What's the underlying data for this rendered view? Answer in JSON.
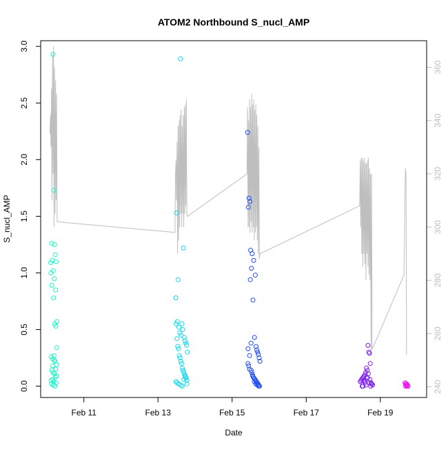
{
  "chart_data": {
    "type": "scatter",
    "title": "ATOM2 Northbound S_nucl_AMP",
    "xlabel": "Date",
    "ylabel": "S_nucl_AMP",
    "xlim": [
      "2024-02-09T20:00",
      "2024-02-20T06:00"
    ],
    "ylim": [
      -0.1,
      3.05
    ],
    "y2lim": [
      236,
      370
    ],
    "grid": false,
    "legend": "none",
    "x_ticks": [
      {
        "date": "2024-02-11T00:00",
        "label": "Feb 11"
      },
      {
        "date": "2024-02-13T00:00",
        "label": "Feb 13"
      },
      {
        "date": "2024-02-15T00:00",
        "label": "Feb 15"
      },
      {
        "date": "2024-02-17T00:00",
        "label": "Feb 17"
      },
      {
        "date": "2024-02-19T00:00",
        "label": "Feb 19"
      }
    ],
    "y_ticks": [
      {
        "value": 0.0,
        "label": "0.0"
      },
      {
        "value": 0.5,
        "label": "0.5"
      },
      {
        "value": 1.0,
        "label": "1.0"
      },
      {
        "value": 1.5,
        "label": "1.5"
      },
      {
        "value": 2.0,
        "label": "2.0"
      },
      {
        "value": 2.5,
        "label": "2.5"
      },
      {
        "value": 3.0,
        "label": "3.0"
      }
    ],
    "y2_ticks": [
      {
        "value": 240,
        "label": "240"
      },
      {
        "value": 260,
        "label": "260"
      },
      {
        "value": 280,
        "label": "280"
      },
      {
        "value": 300,
        "label": "300"
      },
      {
        "value": 320,
        "label": "320"
      },
      {
        "value": 340,
        "label": "340"
      },
      {
        "value": 360,
        "label": "360"
      }
    ],
    "colors": {
      "axis": "#000000",
      "right_axis": "#bebebe",
      "line": "#bebebe",
      "point_palette": [
        "#00ffc0",
        "#00d8f0",
        "#0046ff",
        "#7a00ff",
        "#ff00f0"
      ]
    },
    "series": [
      {
        "type": "scatter",
        "color": "#19f5c8",
        "x": [
          "2024-02-10T04:00",
          "2024-02-10T04:30",
          "2024-02-10T05:00",
          "2024-02-10T05:30",
          "2024-02-10T06:00",
          "2024-02-10T06:30",
          "2024-02-10T03:00",
          "2024-02-10T03:30",
          "2024-02-10T02:30",
          "2024-02-10T04:10",
          "2024-02-10T04:50",
          "2024-02-10T05:40",
          "2024-02-10T02:40",
          "2024-02-10T03:10",
          "2024-02-10T04:20",
          "2024-02-10T05:10",
          "2024-02-10T05:50",
          "2024-02-10T06:20",
          "2024-02-10T02:50",
          "2024-02-10T03:40",
          "2024-02-10T04:40",
          "2024-02-10T05:20",
          "2024-02-10T06:10",
          "2024-02-10T03:20",
          "2024-02-10T04:00",
          "2024-02-10T05:00",
          "2024-02-10T05:30",
          "2024-02-10T03:50",
          "2024-02-10T04:30",
          "2024-02-10T06:00",
          "2024-02-10T03:00",
          "2024-02-10T04:10",
          "2024-02-10T05:10",
          "2024-02-10T02:45",
          "2024-02-10T03:45",
          "2024-02-10T04:45",
          "2024-02-10T05:45",
          "2024-02-10T06:15"
        ],
        "y": [
          2.93,
          1.73,
          1.25,
          1.16,
          1.1,
          0.57,
          1.26,
          1.11,
          1.09,
          1.02,
          0.95,
          0.85,
          1.0,
          0.89,
          0.78,
          0.55,
          0.53,
          0.34,
          0.26,
          0.24,
          0.27,
          0.22,
          0.19,
          0.14,
          0.12,
          0.11,
          0.08,
          0.06,
          0.04,
          0.03,
          0.02,
          0.01,
          0.0,
          0.05,
          0.18,
          0.23,
          0.15,
          0.09
        ]
      },
      {
        "type": "scatter",
        "color": "#10d8ec",
        "x": [
          "2024-02-13T14:30",
          "2024-02-13T12:00",
          "2024-02-13T16:30",
          "2024-02-13T13:00",
          "2024-02-13T11:30",
          "2024-02-13T12:30",
          "2024-02-13T13:30",
          "2024-02-13T14:00",
          "2024-02-13T15:00",
          "2024-02-13T15:30",
          "2024-02-13T16:00",
          "2024-02-13T17:00",
          "2024-02-13T17:30",
          "2024-02-13T18:00",
          "2024-02-13T18:30",
          "2024-02-13T19:00",
          "2024-02-13T11:45",
          "2024-02-13T12:15",
          "2024-02-13T12:45",
          "2024-02-13T13:15",
          "2024-02-13T13:45",
          "2024-02-13T14:15",
          "2024-02-13T14:45",
          "2024-02-13T15:15",
          "2024-02-13T15:45",
          "2024-02-13T16:15",
          "2024-02-13T16:45",
          "2024-02-13T17:15",
          "2024-02-13T17:45",
          "2024-02-13T18:15",
          "2024-02-13T18:45",
          "2024-02-13T11:40",
          "2024-02-13T12:20",
          "2024-02-13T13:20",
          "2024-02-13T14:40",
          "2024-02-13T15:40",
          "2024-02-13T16:40",
          "2024-02-13T17:40",
          "2024-02-13T18:40"
        ],
        "y": [
          2.89,
          1.53,
          1.22,
          0.94,
          0.78,
          0.57,
          0.52,
          0.47,
          0.45,
          0.55,
          0.5,
          0.43,
          0.4,
          0.38,
          0.36,
          0.3,
          0.55,
          0.42,
          0.35,
          0.33,
          0.27,
          0.25,
          0.22,
          0.2,
          0.16,
          0.14,
          0.12,
          0.1,
          0.08,
          0.07,
          0.05,
          0.04,
          0.03,
          0.02,
          0.01,
          0.0,
          0.06,
          0.09,
          0.02
        ]
      },
      {
        "type": "scatter",
        "color": "#1e4cf4",
        "x": [
          "2024-02-15T10:00",
          "2024-02-15T11:00",
          "2024-02-15T11:30",
          "2024-02-15T10:30",
          "2024-02-15T12:00",
          "2024-02-15T13:00",
          "2024-02-15T14:00",
          "2024-02-15T12:30",
          "2024-02-15T15:00",
          "2024-02-15T11:45",
          "2024-02-15T13:30",
          "2024-02-15T14:30",
          "2024-02-15T12:15",
          "2024-02-15T15:30",
          "2024-02-15T16:00",
          "2024-02-15T16:30",
          "2024-02-15T17:00",
          "2024-02-15T17:30",
          "2024-02-15T18:00",
          "2024-02-15T10:15",
          "2024-02-15T10:45",
          "2024-02-15T11:15",
          "2024-02-15T12:45",
          "2024-02-15T13:15",
          "2024-02-15T13:45",
          "2024-02-15T14:15",
          "2024-02-15T14:45",
          "2024-02-15T15:15",
          "2024-02-15T15:45",
          "2024-02-15T16:15",
          "2024-02-15T16:45",
          "2024-02-15T17:15",
          "2024-02-15T17:45",
          "2024-02-15T10:20",
          "2024-02-15T11:20",
          "2024-02-15T12:20",
          "2024-02-15T13:20",
          "2024-02-15T14:20",
          "2024-02-15T15:20",
          "2024-02-15T16:20",
          "2024-02-15T17:20"
        ],
        "y": [
          2.24,
          1.66,
          1.63,
          1.58,
          1.2,
          1.17,
          1.11,
          1.04,
          0.98,
          0.94,
          0.76,
          0.43,
          0.38,
          0.35,
          0.32,
          0.3,
          0.28,
          0.25,
          0.22,
          0.2,
          0.18,
          0.15,
          0.12,
          0.1,
          0.08,
          0.07,
          0.06,
          0.05,
          0.04,
          0.03,
          0.02,
          0.01,
          0.0,
          0.33,
          0.27,
          0.14,
          0.09,
          0.04,
          0.02,
          0.01,
          0.0
        ]
      },
      {
        "type": "scatter",
        "color": "#7c1cf2",
        "x": [
          "2024-02-18T16:00",
          "2024-02-18T16:30",
          "2024-02-18T17:00",
          "2024-02-18T17:30",
          "2024-02-18T15:00",
          "2024-02-18T15:30",
          "2024-02-18T14:30",
          "2024-02-18T14:00",
          "2024-02-18T13:30",
          "2024-02-18T13:00",
          "2024-02-18T12:30",
          "2024-02-18T12:00",
          "2024-02-18T11:30",
          "2024-02-18T11:00",
          "2024-02-18T18:00",
          "2024-02-18T18:30",
          "2024-02-18T19:00",
          "2024-02-18T12:15",
          "2024-02-18T13:15",
          "2024-02-18T14:15",
          "2024-02-18T15:15",
          "2024-02-18T16:15",
          "2024-02-18T17:15",
          "2024-02-18T18:15",
          "2024-02-18T12:45",
          "2024-02-18T13:45",
          "2024-02-18T14:45",
          "2024-02-18T15:45",
          "2024-02-18T16:45",
          "2024-02-18T17:45"
        ],
        "y": [
          0.36,
          0.3,
          0.29,
          0.2,
          0.16,
          0.14,
          0.12,
          0.1,
          0.09,
          0.08,
          0.07,
          0.06,
          0.05,
          0.04,
          0.03,
          0.02,
          0.01,
          0.0,
          0.05,
          0.03,
          0.08,
          0.11,
          0.06,
          0.02,
          0.0,
          0.04,
          0.01,
          0.07,
          0.03,
          0.0
        ]
      },
      {
        "type": "scatter",
        "color": "#ee10ee",
        "x": [
          "2024-02-19T16:00",
          "2024-02-19T16:30",
          "2024-02-19T17:00",
          "2024-02-19T17:30",
          "2024-02-19T18:00",
          "2024-02-19T16:15",
          "2024-02-19T16:45",
          "2024-02-19T17:15"
        ],
        "y": [
          0.03,
          0.02,
          0.02,
          0.01,
          0.0,
          0.0,
          0.01,
          0.0
        ]
      },
      {
        "type": "line",
        "axis": "right",
        "color": "#bebebe",
        "x": [
          "2024-02-10T02:00",
          "2024-02-10T02:20",
          "2024-02-10T02:40",
          "2024-02-10T03:00",
          "2024-02-10T03:20",
          "2024-02-10T03:40",
          "2024-02-10T04:00",
          "2024-02-10T04:20",
          "2024-02-10T04:40",
          "2024-02-10T05:00",
          "2024-02-10T05:20",
          "2024-02-10T05:40",
          "2024-02-10T06:00",
          "2024-02-10T06:20",
          "2024-02-10T06:40",
          "2024-02-13T11:00",
          "2024-02-13T11:20",
          "2024-02-13T11:40",
          "2024-02-13T12:00",
          "2024-02-13T12:20",
          "2024-02-13T12:40",
          "2024-02-13T13:00",
          "2024-02-13T13:20",
          "2024-02-13T13:40",
          "2024-02-13T14:00",
          "2024-02-13T14:20",
          "2024-02-13T14:40",
          "2024-02-13T15:00",
          "2024-02-13T15:20",
          "2024-02-13T15:40",
          "2024-02-13T16:00",
          "2024-02-13T16:20",
          "2024-02-13T16:40",
          "2024-02-13T17:00",
          "2024-02-13T17:20",
          "2024-02-13T17:40",
          "2024-02-13T18:00",
          "2024-02-13T18:20",
          "2024-02-13T18:40",
          "2024-02-13T19:00",
          "2024-02-15T09:40",
          "2024-02-15T10:00",
          "2024-02-15T10:20",
          "2024-02-15T10:40",
          "2024-02-15T11:00",
          "2024-02-15T11:20",
          "2024-02-15T11:40",
          "2024-02-15T12:00",
          "2024-02-15T12:20",
          "2024-02-15T12:40",
          "2024-02-15T13:00",
          "2024-02-15T13:20",
          "2024-02-15T13:40",
          "2024-02-15T14:00",
          "2024-02-15T14:20",
          "2024-02-15T14:40",
          "2024-02-15T15:00",
          "2024-02-15T15:20",
          "2024-02-15T15:40",
          "2024-02-15T16:00",
          "2024-02-15T16:20",
          "2024-02-15T16:40",
          "2024-02-15T17:00",
          "2024-02-15T17:20",
          "2024-02-15T17:40",
          "2024-02-15T18:00",
          "2024-02-18T10:40",
          "2024-02-18T11:00",
          "2024-02-18T11:20",
          "2024-02-18T11:40",
          "2024-02-18T12:00",
          "2024-02-18T12:20",
          "2024-02-18T12:40",
          "2024-02-18T13:00",
          "2024-02-18T13:20",
          "2024-02-18T13:40",
          "2024-02-18T14:00",
          "2024-02-18T14:20",
          "2024-02-18T14:40",
          "2024-02-18T15:00",
          "2024-02-18T15:20",
          "2024-02-18T15:40",
          "2024-02-18T16:00",
          "2024-02-18T16:20",
          "2024-02-18T16:40",
          "2024-02-18T17:00",
          "2024-02-18T17:20",
          "2024-02-18T17:40",
          "2024-02-18T18:00",
          "2024-02-18T18:20",
          "2024-02-18T18:40",
          "2024-02-19T15:20",
          "2024-02-19T15:40",
          "2024-02-19T16:00",
          "2024-02-19T16:20",
          "2024-02-19T16:40",
          "2024-02-19T17:00"
        ],
        "y": [
          335,
          342,
          330,
          352,
          310,
          365,
          320,
          368,
          300,
          360,
          305,
          355,
          310,
          350,
          302,
          298,
          320,
          325,
          310,
          332,
          290,
          338,
          295,
          340,
          300,
          342,
          305,
          344,
          300,
          338,
          305,
          342,
          300,
          345,
          305,
          346,
          308,
          348,
          305,
          304,
          320,
          345,
          300,
          340,
          300,
          348,
          298,
          345,
          302,
          350,
          298,
          346,
          300,
          348,
          295,
          344,
          298,
          346,
          300,
          342,
          295,
          338,
          290,
          330,
          288,
          290,
          308,
          325,
          300,
          326,
          290,
          326,
          285,
          325,
          290,
          326,
          286,
          324,
          280,
          324,
          290,
          325,
          285,
          326,
          282,
          322,
          280,
          320,
          252,
          320,
          254,
          282,
          295,
          315,
          322,
          320,
          252
        ]
      }
    ]
  }
}
